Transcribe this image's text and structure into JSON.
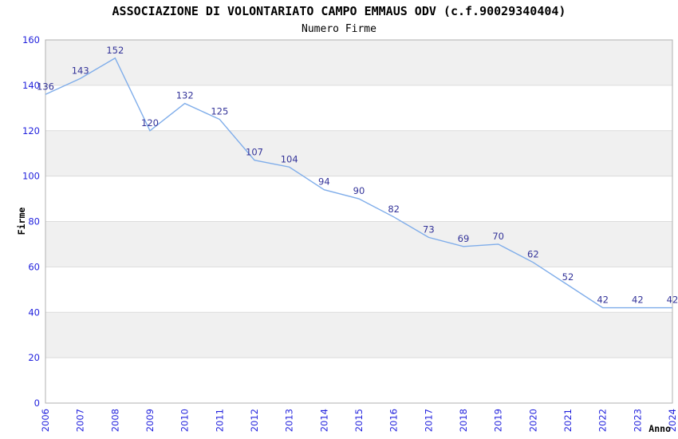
{
  "chart_data": {
    "type": "line",
    "title": "ASSOCIAZIONE DI VOLONTARIATO CAMPO EMMAUS ODV (c.f.90029340404)",
    "subtitle": "Numero Firme",
    "xlabel": "Anno",
    "ylabel": "Firme",
    "categories": [
      "2006",
      "2007",
      "2008",
      "2009",
      "2010",
      "2011",
      "2012",
      "2013",
      "2014",
      "2015",
      "2016",
      "2017",
      "2018",
      "2019",
      "2020",
      "2021",
      "2022",
      "2023",
      "2024"
    ],
    "series": [
      {
        "name": "Numero Firme",
        "values": [
          136,
          143,
          152,
          120,
          132,
          125,
          107,
          104,
          94,
          90,
          82,
          73,
          69,
          70,
          62,
          52,
          42,
          42,
          42
        ]
      }
    ],
    "ylim": [
      0,
      160
    ],
    "ytick_step": 20,
    "yticks": [
      0,
      20,
      40,
      60,
      80,
      100,
      120,
      140,
      160
    ],
    "grid": "horizontal-bands",
    "legend_position": "none",
    "data_labels_visible": true,
    "x_tick_rotation_deg": 90,
    "style": {
      "line_color": "#7fadea",
      "data_label_color": "#333399",
      "tick_label_color": "#2222dd",
      "band_color": "#f0f0f0",
      "band_alt_color": "#ffffff",
      "grid_color": "#dcdcdc",
      "border_color": "#b0b0b0",
      "title_color": "#1a1a1a",
      "subtitle_color": "#333333",
      "axis_title_color": "#1a1a1a",
      "background_color": "#ffffff"
    }
  }
}
